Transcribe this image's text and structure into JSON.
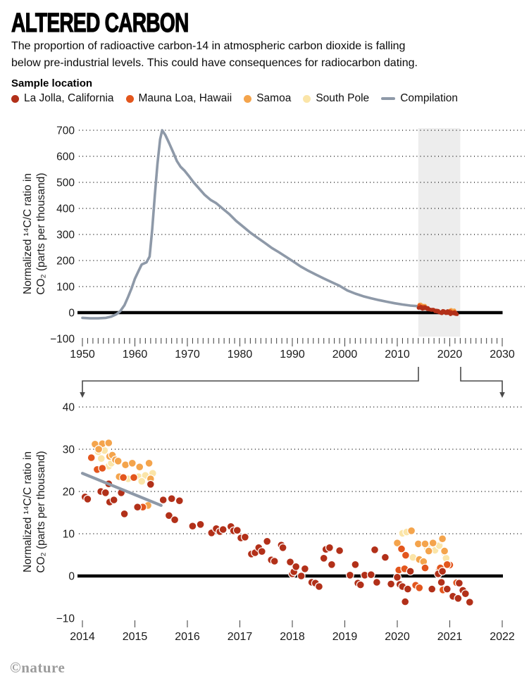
{
  "header": {
    "title": "ALTERED CARBON",
    "subtitle_lines": [
      "The proportion of radioactive carbon-14 in atmospheric carbon dioxide is falling",
      "below pre-industrial levels. This could have consequences for radiocarbon dating."
    ]
  },
  "legend": {
    "title": "Sample location",
    "items": [
      {
        "label": "La Jolla, California",
        "color_key": "la_jolla",
        "swatch": "dot"
      },
      {
        "label": "Mauna Loa, Hawaii",
        "color_key": "mauna_loa",
        "swatch": "dot"
      },
      {
        "label": "Samoa",
        "color_key": "samoa",
        "swatch": "dot"
      },
      {
        "label": "South Pole",
        "color_key": "south_pole",
        "swatch": "dot"
      },
      {
        "label": "Compilation",
        "color_key": "compilation",
        "swatch": "line"
      }
    ]
  },
  "colors": {
    "la_jolla": "#b23019",
    "mauna_loa": "#e3561d",
    "samoa": "#f4a44c",
    "south_pole": "#fbe5a8",
    "compilation": "#8e99a8",
    "highlight_band": "#ededed",
    "zero_line": "#000000",
    "grid": "#2b2b2b",
    "tick": "#4d4d4d",
    "bracket": "#4a4a4a",
    "brand_gray": "#9c9c9c"
  },
  "footer": {
    "brand": "©nature"
  },
  "chart_data": [
    {
      "type": "line",
      "name": "full-record-1950-2030",
      "ylabel_lines": [
        "Normalized ¹⁴C/C ratio in",
        "CO₂ (parts per thousand)"
      ],
      "xlim": [
        1950,
        2030
      ],
      "ylim": [
        -100,
        700
      ],
      "grid": "dotted horizontal at 100..700",
      "zero_line": true,
      "highlight_region": {
        "x0": 2014,
        "x1": 2022
      },
      "y_ticks": [
        [
          700,
          "700"
        ],
        [
          600,
          "600"
        ],
        [
          500,
          "500"
        ],
        [
          400,
          "400"
        ],
        [
          300,
          "300"
        ],
        [
          200,
          "200"
        ],
        [
          100,
          "100"
        ],
        [
          0,
          "0"
        ],
        [
          -100,
          "−100"
        ]
      ],
      "y_grid": [
        700,
        600,
        500,
        400,
        300,
        200,
        100
      ],
      "x_ticks": [
        [
          1950,
          "1950"
        ],
        [
          1960,
          "1960"
        ],
        [
          1970,
          "1970"
        ],
        [
          1980,
          "1980"
        ],
        [
          1990,
          "1990"
        ],
        [
          2000,
          "2000"
        ],
        [
          2010,
          "2010"
        ],
        [
          2020,
          "2020"
        ],
        [
          2030,
          "2030"
        ]
      ],
      "minor_tick_step_years": 1,
      "series": [
        {
          "name": "Compilation",
          "color_key": "compilation",
          "points": [
            [
              1950,
              -20
            ],
            [
              1951.5,
              -22
            ],
            [
              1953,
              -22
            ],
            [
              1954.5,
              -20
            ],
            [
              1955.5,
              -15
            ],
            [
              1956.5,
              -6
            ],
            [
              1957.2,
              5
            ],
            [
              1958,
              28
            ],
            [
              1958.7,
              60
            ],
            [
              1959.4,
              95
            ],
            [
              1960,
              130
            ],
            [
              1960.7,
              160
            ],
            [
              1961.3,
              185
            ],
            [
              1962.2,
              193
            ],
            [
              1962.8,
              215
            ],
            [
              1963.3,
              320
            ],
            [
              1963.8,
              450
            ],
            [
              1964.3,
              570
            ],
            [
              1964.8,
              665
            ],
            [
              1965.2,
              700
            ],
            [
              1965.8,
              682
            ],
            [
              1966.5,
              652
            ],
            [
              1967.3,
              615
            ],
            [
              1968,
              582
            ],
            [
              1968.7,
              560
            ],
            [
              1969.5,
              544
            ],
            [
              1970.3,
              524
            ],
            [
              1971.2,
              500
            ],
            [
              1972.2,
              477
            ],
            [
              1973.3,
              452
            ],
            [
              1974.4,
              433
            ],
            [
              1975.5,
              420
            ],
            [
              1976.8,
              398
            ],
            [
              1978,
              378
            ],
            [
              1979.3,
              352
            ],
            [
              1980.7,
              329
            ],
            [
              1982,
              307
            ],
            [
              1983.4,
              287
            ],
            [
              1984.8,
              267
            ],
            [
              1986.1,
              248
            ],
            [
              1987.5,
              231
            ],
            [
              1988.8,
              214
            ],
            [
              1990.2,
              196
            ],
            [
              1991.6,
              177
            ],
            [
              1993,
              161
            ],
            [
              1994.5,
              146
            ],
            [
              1996,
              131
            ],
            [
              1997.5,
              117
            ],
            [
              1999,
              103
            ],
            [
              2000.5,
              85
            ],
            [
              2002,
              73
            ],
            [
              2003.5,
              63
            ],
            [
              2005,
              55
            ],
            [
              2006.5,
              48
            ],
            [
              2008,
              42
            ],
            [
              2009.5,
              36
            ],
            [
              2011,
              31
            ],
            [
              2012.5,
              27
            ],
            [
              2014,
              25
            ]
          ]
        }
      ],
      "scatter_note": "The small coloured dots near 2014-2022 are the same sample measurements shown in the zoomed chart below (chart_data[1].series)."
    },
    {
      "type": "scatter",
      "name": "zoom-2014-2022",
      "ylabel_lines": [
        "Normalized ¹⁴C/C ratio in",
        "CO₂ (parts per thousand)"
      ],
      "xlim": [
        2014,
        2022
      ],
      "ylim": [
        -10,
        40
      ],
      "grid": "dotted horizontal at 10..40",
      "zero_line": true,
      "y_ticks": [
        [
          40,
          "40"
        ],
        [
          30,
          "30"
        ],
        [
          20,
          "20"
        ],
        [
          10,
          "10"
        ],
        [
          0,
          "0"
        ],
        [
          -10,
          "−10"
        ]
      ],
      "y_grid": [
        40,
        30,
        20,
        10
      ],
      "x_ticks": [
        [
          2014,
          "2014"
        ],
        [
          2015,
          "2015"
        ],
        [
          2016,
          "2016"
        ],
        [
          2017,
          "2017"
        ],
        [
          2018,
          "2018"
        ],
        [
          2019,
          "2019"
        ],
        [
          2020,
          "2020"
        ],
        [
          2021,
          "2021"
        ],
        [
          2022,
          "2022"
        ]
      ],
      "series": [
        {
          "name": "South Pole",
          "color_key": "south_pole",
          "points": [
            [
              2014.3,
              29.4
            ],
            [
              2014.42,
              29.7
            ],
            [
              2014.36,
              27.8
            ],
            [
              2014.5,
              26.0
            ],
            [
              2014.55,
              26.7
            ],
            [
              2014.87,
              23.0
            ],
            [
              2015.07,
              23.5
            ],
            [
              2015.2,
              23.8
            ],
            [
              2015.34,
              24.3
            ],
            [
              2015.13,
              22.4
            ],
            [
              2020.1,
              10.1
            ],
            [
              2020.18,
              10.4
            ],
            [
              2020.72,
              6.1
            ],
            [
              2020.3,
              4.4
            ],
            [
              2020.8,
              7.2
            ],
            [
              2020.9,
              5.5
            ],
            [
              2020.93,
              4.2
            ],
            [
              2020.57,
              6.6
            ]
          ]
        },
        {
          "name": "Samoa",
          "color_key": "samoa",
          "points": [
            [
              2014.24,
              31.2
            ],
            [
              2014.38,
              31.3
            ],
            [
              2014.5,
              31.5
            ],
            [
              2014.31,
              30.0
            ],
            [
              2014.52,
              28.3
            ],
            [
              2014.57,
              28.6
            ],
            [
              2014.63,
              27.5
            ],
            [
              2014.68,
              27.2
            ],
            [
              2014.82,
              26.3
            ],
            [
              2014.95,
              26.7
            ],
            [
              2015.09,
              25.8
            ],
            [
              2015.27,
              26.7
            ],
            [
              2014.7,
              23.5
            ],
            [
              2015.3,
              23.0
            ],
            [
              2015.25,
              16.7
            ],
            [
              2020.27,
              10.7
            ],
            [
              2020.4,
              7.6
            ],
            [
              2020.53,
              7.6
            ],
            [
              2020.68,
              7.8
            ],
            [
              2020.85,
              8.6
            ],
            [
              2020.6,
              5.9
            ],
            [
              2020.9,
              5.9
            ],
            [
              2020.0,
              7.8
            ],
            [
              2020.42,
              3.9
            ],
            [
              2020.5,
              3.4
            ],
            [
              2020.86,
              8.8
            ]
          ]
        },
        {
          "name": "Mauna Loa, Hawaii",
          "color_key": "mauna_loa",
          "points": [
            [
              2014.17,
              28.0
            ],
            [
              2014.28,
              25.2
            ],
            [
              2014.38,
              25.5
            ],
            [
              2014.78,
              23.3
            ],
            [
              2014.98,
              23.3
            ],
            [
              2015.15,
              16.3
            ],
            [
              2020.08,
              6.4
            ],
            [
              2020.16,
              4.9
            ],
            [
              2020.53,
              1.9
            ],
            [
              2020.8,
              1.4
            ],
            [
              2021.0,
              2.6
            ],
            [
              2020.35,
              -2.2
            ],
            [
              2020.42,
              -2.8
            ],
            [
              2020.87,
              -3.3
            ],
            [
              2021.13,
              -1.6
            ],
            [
              2021.1,
              -5.0
            ],
            [
              2020.95,
              2.7
            ],
            [
              2020.82,
              1.9
            ],
            [
              2020.03,
              1.4
            ],
            [
              2020.14,
              1.7
            ]
          ]
        },
        {
          "name": "La Jolla, California",
          "color_key": "la_jolla",
          "points": [
            [
              2014.05,
              18.7
            ],
            [
              2014.1,
              18.2
            ],
            [
              2014.35,
              20.0
            ],
            [
              2014.44,
              19.7
            ],
            [
              2014.5,
              21.8
            ],
            [
              2014.52,
              17.5
            ],
            [
              2014.6,
              18.0
            ],
            [
              2014.74,
              19.7
            ],
            [
              2014.8,
              14.7
            ],
            [
              2015.05,
              16.3
            ],
            [
              2015.3,
              21.7
            ],
            [
              2015.54,
              18.0
            ],
            [
              2015.7,
              18.3
            ],
            [
              2015.85,
              17.8
            ],
            [
              2015.65,
              14.3
            ],
            [
              2015.76,
              13.3
            ],
            [
              2016.1,
              11.8
            ],
            [
              2016.25,
              12.2
            ],
            [
              2016.46,
              10.2
            ],
            [
              2016.55,
              11.2
            ],
            [
              2016.62,
              10.5
            ],
            [
              2016.68,
              11.0
            ],
            [
              2016.83,
              11.7
            ],
            [
              2016.88,
              10.7
            ],
            [
              2016.95,
              10.8
            ],
            [
              2017.02,
              9.0
            ],
            [
              2017.1,
              9.2
            ],
            [
              2017.22,
              5.2
            ],
            [
              2017.29,
              5.5
            ],
            [
              2017.36,
              6.7
            ],
            [
              2017.42,
              5.8
            ],
            [
              2017.52,
              8.2
            ],
            [
              2017.6,
              3.8
            ],
            [
              2017.66,
              3.5
            ],
            [
              2017.79,
              7.3
            ],
            [
              2017.82,
              6.7
            ],
            [
              2017.96,
              3.3
            ],
            [
              2018.0,
              0.5
            ],
            [
              2018.03,
              1.0
            ],
            [
              2018.07,
              2.2
            ],
            [
              2018.17,
              0.0
            ],
            [
              2018.24,
              1.7
            ],
            [
              2018.37,
              -1.5
            ],
            [
              2018.44,
              -1.7
            ],
            [
              2018.51,
              -2.5
            ],
            [
              2018.6,
              4.2
            ],
            [
              2018.64,
              6.3
            ],
            [
              2018.71,
              6.7
            ],
            [
              2018.75,
              2.7
            ],
            [
              2018.9,
              6.0
            ],
            [
              2019.1,
              0.2
            ],
            [
              2019.2,
              2.7
            ],
            [
              2019.25,
              -1.7
            ],
            [
              2019.3,
              -2.1
            ],
            [
              2019.38,
              0.2
            ],
            [
              2019.5,
              0.3
            ],
            [
              2019.57,
              6.2
            ],
            [
              2019.77,
              4.4
            ],
            [
              2019.61,
              -1.5
            ],
            [
              2019.88,
              -1.9
            ],
            [
              2020.0,
              -0.3
            ],
            [
              2020.05,
              -2.0
            ],
            [
              2020.1,
              -2.5
            ],
            [
              2020.2,
              -3.1
            ],
            [
              2020.25,
              1.1
            ],
            [
              2020.15,
              -6.1
            ],
            [
              2020.66,
              -3.1
            ],
            [
              2020.78,
              0.5
            ],
            [
              2020.84,
              -1.5
            ],
            [
              2020.86,
              1.1
            ],
            [
              2020.95,
              -3.1
            ],
            [
              2021.06,
              -4.8
            ],
            [
              2021.16,
              -5.3
            ],
            [
              2021.18,
              -1.7
            ],
            [
              2021.25,
              -3.4
            ],
            [
              2021.3,
              -4.2
            ],
            [
              2021.38,
              -6.2
            ]
          ]
        },
        {
          "name": "Compilation",
          "color_key": "compilation",
          "segment": [
            [
              2014.0,
              24.3
            ],
            [
              2015.5,
              16.7
            ]
          ]
        }
      ]
    }
  ]
}
